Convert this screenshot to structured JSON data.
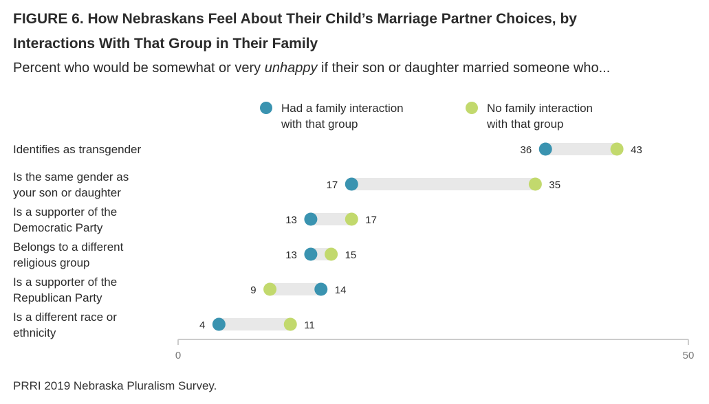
{
  "title_line1": "FIGURE 6. How Nebraskans Feel About Their Child’s Marriage Partner Choices, by",
  "title_line2": "Interactions With That Group in Their Family",
  "subtitle_pre": "Percent who would be somewhat or very ",
  "subtitle_em": "unhappy",
  "subtitle_post": " if their son or daughter married someone who...",
  "source": "PRRI 2019 Nebraska Pluralism Survey.",
  "colors": {
    "family": "#3a93b0",
    "no_family": "#c2d96d",
    "bar": "#e8e8e8",
    "axis": "#cccccc"
  },
  "chart_data": {
    "type": "dot-range",
    "xlim": [
      0,
      50
    ],
    "x_ticks": [
      "0",
      "50"
    ],
    "legend": [
      {
        "line1": "Had a family interaction",
        "line2": "with that group"
      },
      {
        "line1": "No family interaction",
        "line2": "with that group"
      }
    ],
    "categories": [
      {
        "lines": [
          "Identifies as transgender"
        ],
        "family": 36,
        "no_family": 43
      },
      {
        "lines": [
          "Is the same gender as",
          "your son or daughter"
        ],
        "family": 17,
        "no_family": 35
      },
      {
        "lines": [
          "Is a supporter of the",
          "Democratic Party"
        ],
        "family": 13,
        "no_family": 17
      },
      {
        "lines": [
          "Belongs to a different",
          "religious group"
        ],
        "family": 13,
        "no_family": 15
      },
      {
        "lines": [
          "Is a supporter of the",
          "Republican Party"
        ],
        "family": 14,
        "no_family": 9
      },
      {
        "lines": [
          "Is a different race or",
          "ethnicity"
        ],
        "family": 4,
        "no_family": 11
      }
    ]
  }
}
